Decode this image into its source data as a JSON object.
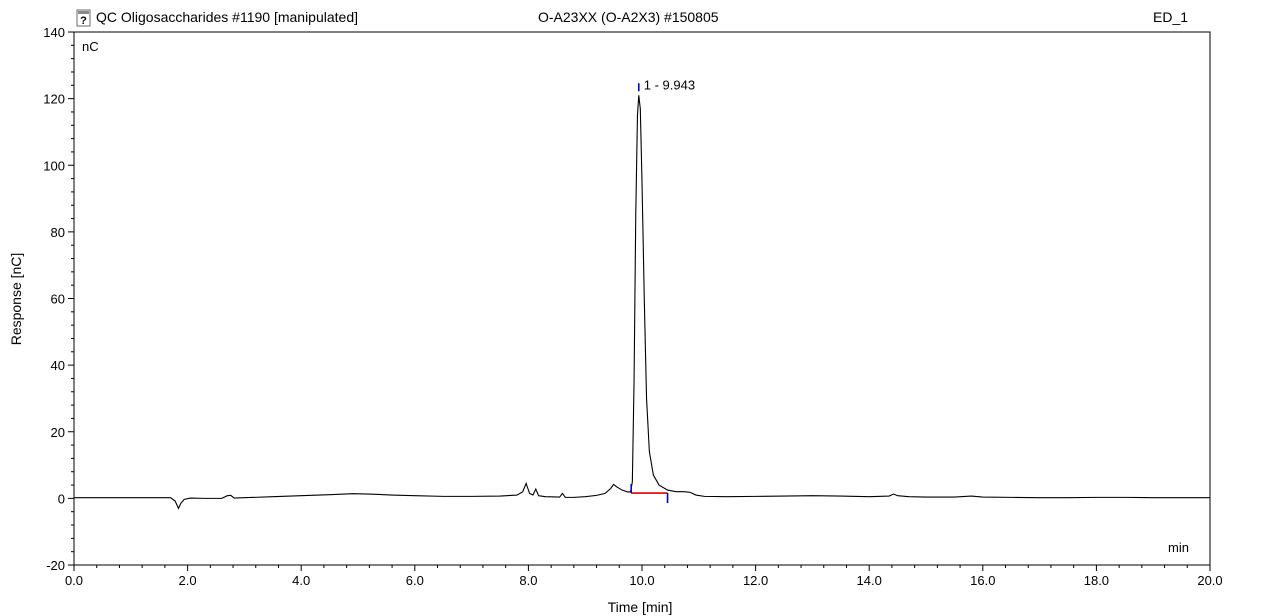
{
  "header": {
    "sequence_title": "QC Oligosaccharides #1190 [manipulated]",
    "sample_title": "O-A23XX (O-A2X3) #150805",
    "channel": "ED_1"
  },
  "icons": {
    "chromatogram_icon": "help-document-icon"
  },
  "chart_data": {
    "type": "line",
    "xlabel": "Time [min]",
    "ylabel": "Response [nC]",
    "y_unit_label": "nC",
    "x_unit_label": "min",
    "xlim": [
      0.0,
      20.0
    ],
    "ylim": [
      -20,
      140
    ],
    "x_ticks": [
      0.0,
      2.0,
      4.0,
      6.0,
      8.0,
      10.0,
      12.0,
      14.0,
      16.0,
      18.0,
      20.0
    ],
    "x_tick_labels": [
      "0.0",
      "2.0",
      "4.0",
      "6.0",
      "8.0",
      "10.0",
      "12.0",
      "14.0",
      "16.0",
      "18.0",
      "20.0"
    ],
    "y_ticks": [
      -20,
      0,
      20,
      40,
      60,
      80,
      100,
      120,
      140
    ],
    "y_tick_labels": [
      "-20",
      "0",
      "20",
      "40",
      "60",
      "80",
      "100",
      "120",
      "140"
    ],
    "grid": false,
    "colors": {
      "trace": "#000000",
      "baseline": "#e00000",
      "peak_markers": "#0000cc",
      "frame": "#000000"
    },
    "series": [
      {
        "x": [
          0.0,
          1.0,
          1.7,
          1.78,
          1.84,
          1.88,
          1.94,
          2.05,
          2.3,
          2.6,
          2.7,
          2.76,
          2.82,
          3.0,
          3.5,
          4.0,
          4.5,
          4.9,
          5.2,
          5.6,
          6.0,
          6.5,
          7.0,
          7.5,
          7.8,
          7.9,
          7.96,
          8.02,
          8.08,
          8.13,
          8.18,
          8.3,
          8.55,
          8.6,
          8.65,
          8.8,
          9.0,
          9.2,
          9.35,
          9.45,
          9.5,
          9.55,
          9.65,
          9.75,
          9.8,
          9.83,
          9.86,
          9.89,
          9.92,
          9.943,
          9.97,
          10.0,
          10.04,
          10.08,
          10.13,
          10.2,
          10.3,
          10.45,
          10.6,
          10.75,
          10.85,
          10.95,
          11.1,
          11.5,
          12.0,
          12.5,
          13.0,
          13.5,
          14.0,
          14.35,
          14.43,
          14.5,
          14.7,
          15.0,
          15.5,
          15.8,
          16.0,
          16.5,
          17.0,
          17.5,
          18.0,
          18.5,
          19.0,
          19.5,
          20.0
        ],
        "y": [
          0.2,
          0.2,
          0.2,
          -0.8,
          -3.0,
          -1.5,
          -0.3,
          0.1,
          0.0,
          0.0,
          0.8,
          0.9,
          0.1,
          0.2,
          0.5,
          0.8,
          1.1,
          1.4,
          1.3,
          1.0,
          0.8,
          0.6,
          0.6,
          0.7,
          1.0,
          2.0,
          4.5,
          1.5,
          1.0,
          2.8,
          0.8,
          0.5,
          0.4,
          1.5,
          0.3,
          0.3,
          0.5,
          0.9,
          1.5,
          3.0,
          4.2,
          3.5,
          2.5,
          1.9,
          2.0,
          5.0,
          35.0,
          85.0,
          115.0,
          121.0,
          117.0,
          95.0,
          60.0,
          30.0,
          14.0,
          7.0,
          4.0,
          2.5,
          2.0,
          2.0,
          1.8,
          1.0,
          0.6,
          0.5,
          0.6,
          0.7,
          0.8,
          0.7,
          0.5,
          0.7,
          1.3,
          0.8,
          0.5,
          0.4,
          0.4,
          0.7,
          0.4,
          0.3,
          0.2,
          0.2,
          0.3,
          0.3,
          0.2,
          0.2,
          0.2
        ]
      }
    ],
    "peak": {
      "label": "1 - 9.943",
      "retention_time": 9.943,
      "start_time": 9.81,
      "end_time": 10.45,
      "baseline_level": 1.6
    }
  }
}
